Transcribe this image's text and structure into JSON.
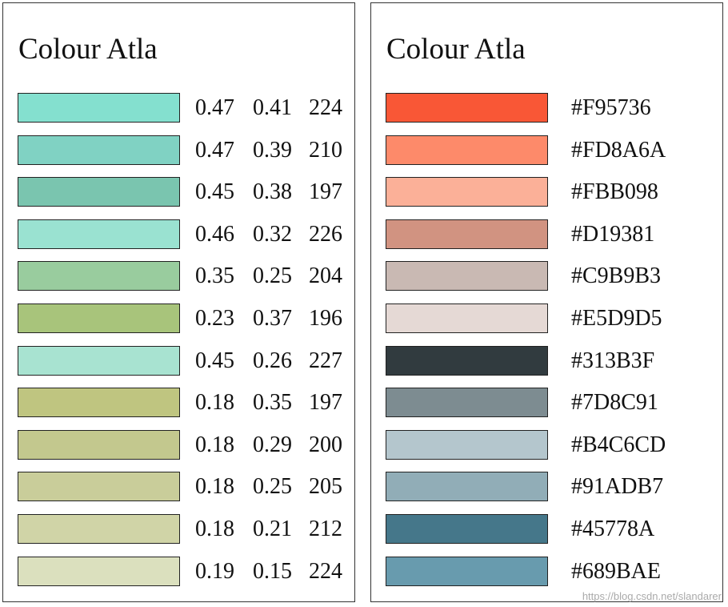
{
  "left_panel": {
    "title": "Colour Atla",
    "rows": [
      [
        0.47,
        0.41,
        224
      ],
      [
        0.47,
        0.39,
        210
      ],
      [
        0.45,
        0.38,
        197
      ],
      [
        0.46,
        0.32,
        226
      ],
      [
        0.35,
        0.25,
        204
      ],
      [
        0.23,
        0.37,
        196
      ],
      [
        0.45,
        0.26,
        227
      ],
      [
        0.18,
        0.35,
        197
      ],
      [
        0.18,
        0.29,
        200
      ],
      [
        0.18,
        0.25,
        205
      ],
      [
        0.18,
        0.21,
        212
      ],
      [
        0.19,
        0.15,
        224
      ]
    ]
  },
  "right_panel": {
    "title": "Colour Atla",
    "rows": [
      "#F95736",
      "#FD8A6A",
      "#FBB098",
      "#D19381",
      "#C9B9B3",
      "#E5D9D5",
      "#313B3F",
      "#7D8C91",
      "#B4C6CD",
      "#91ADB7",
      "#45778A",
      "#689BAE"
    ]
  },
  "watermark": "https://blog.csdn.net/slandarer"
}
